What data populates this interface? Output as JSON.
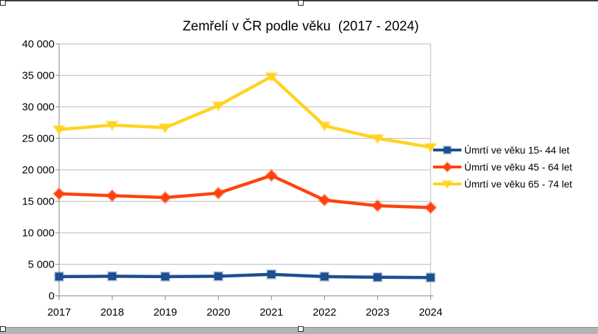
{
  "chart_data": {
    "type": "line",
    "title": "Zemřelí v ČR podle věku  (2017 - 2024)",
    "categories": [
      "2017",
      "2018",
      "2019",
      "2020",
      "2021",
      "2022",
      "2023",
      "2024"
    ],
    "y_axis": {
      "min": 0,
      "max": 40000,
      "step": 5000,
      "tick_labels": [
        "0",
        "5 000",
        "10 000",
        "15 000",
        "20 000",
        "25 000",
        "30 000",
        "35 000",
        "40 000"
      ]
    },
    "ylim": [
      0,
      40000
    ],
    "grid": true,
    "legend_position": "right",
    "series": [
      {
        "name": "Úmrtí ve věku 15- 44 let",
        "color": "#1D4F91",
        "marker": "square",
        "values": [
          3050,
          3100,
          3050,
          3100,
          3400,
          3050,
          2950,
          2900
        ]
      },
      {
        "name": "Úmrtí ve věku 45 - 64 let",
        "color": "#FF420E",
        "marker": "diamond",
        "values": [
          16200,
          15900,
          15600,
          16300,
          19100,
          15200,
          14300,
          14000
        ]
      },
      {
        "name": "Úmrtí ve věku 65 - 74 let",
        "color": "#FFD320",
        "marker": "triangle-down",
        "values": [
          26400,
          27100,
          26700,
          30200,
          34800,
          27000,
          25000,
          23600
        ]
      }
    ]
  }
}
